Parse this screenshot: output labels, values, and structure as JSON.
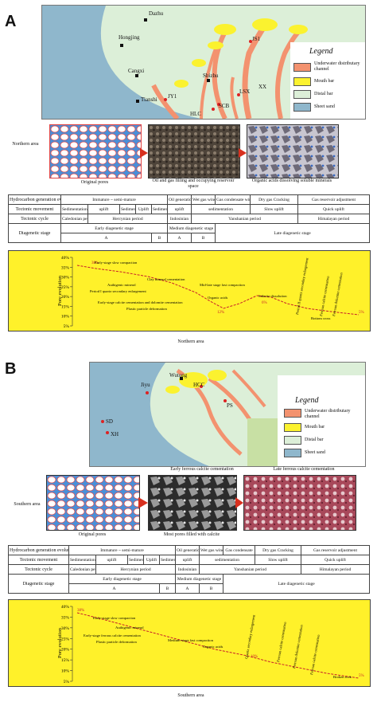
{
  "panels": [
    {
      "letter": "A",
      "map": {
        "places": [
          "Dazhu",
          "Hongjing",
          "Cangxi",
          "Shizhu",
          "JS1",
          "Tianshi",
          "LSX",
          "JY1",
          "SCB",
          "XX",
          "HLC"
        ],
        "legend_title": "Legend",
        "legend": [
          {
            "label": "Underwater distributary channel",
            "color": "#f3926f"
          },
          {
            "label": "Mouth bar",
            "color": "#fbf22f"
          },
          {
            "label": "Distal bar",
            "color": "#dcefd8"
          },
          {
            "label": "Sheet sand",
            "color": "#8fb7cc"
          }
        ]
      },
      "side_label": "Northern area",
      "micro_captions": [
        "Original pores",
        "Oil and gas filling and occupying reservoir space",
        "Organic acids dissolving soluble minerals"
      ],
      "table": {
        "row1": [
          "Hydrocarbon generation evolution",
          "Immature ~ semi-mature",
          "Oil generation window",
          "Wet gas window",
          "Gas condensate window",
          "Dry gas",
          "Cracking",
          "Gas reservoir adjustment"
        ],
        "row2": [
          "Tectonic movement",
          "Sedimentation",
          "uplift",
          "Sedimentation",
          "Uplift",
          "Sedimentation",
          "uplift",
          "sedimentation",
          "Slow uplift",
          "Quick uplift"
        ],
        "row3": [
          "Tectonic cycle",
          "Caledonian period",
          "Hercynian period",
          "Indosinian",
          "Yanshanian period",
          "Himalayan period"
        ],
        "row4": [
          "Diagenetic stage",
          "Early diagenetic stage",
          "Medium diagenetic stage",
          "Late diagenetic stage"
        ],
        "row5": [
          "A",
          "B",
          "A",
          "B"
        ]
      },
      "chart": {
        "ylabel": "Pore evolution",
        "yticks": [
          "40%",
          "35%",
          "30%",
          "25%",
          "20%",
          "15%",
          "10%",
          "5%"
        ],
        "start_value": "38%",
        "mid_value": "12%",
        "mid2_value": "6%",
        "end_value": "5%",
        "annotations": [
          "Early-stage slow compaction",
          "Clay mineral cementation",
          "Authigenic mineral",
          "Period I quartz secondary enlargement",
          "Mid-late stage fast compaction",
          "Early-stage calcite cementation and dolomite cementation",
          "Plastic particle deformation",
          "Organic acids",
          "Siderite dissolution",
          "Period II quartz secondary enlargement",
          "Ferroan calcite cementation",
          "Ferroan dolomite cementation",
          "Bottom cross"
        ]
      },
      "area_caption": "Northern area"
    },
    {
      "letter": "B",
      "map": {
        "places": [
          "Jiyu",
          "Wutong",
          "HCC",
          "PS",
          "SD",
          "XH"
        ],
        "legend_title": "Legend",
        "legend": [
          {
            "label": "Underwater distributary channel",
            "color": "#f3926f"
          },
          {
            "label": "Mouth bar",
            "color": "#fbf22f"
          },
          {
            "label": "Distal bar",
            "color": "#dcefd8"
          },
          {
            "label": "Sheet sand",
            "color": "#8fb7cc"
          }
        ]
      },
      "side_label": "Southern area",
      "micro_top_captions": [
        "Early ferrous calcite cementation",
        "Late ferrous calcite cementation"
      ],
      "micro_captions": [
        "Original pores",
        "Most pores filled with calcite"
      ],
      "table": {
        "row1": [
          "Hydrocarbon generation evolution",
          "Immature ~ semi-mature",
          "Oil generation",
          "Wet gas window",
          "Gas condensate",
          "Dry gas",
          "Cracking",
          "Gas reservoir adjustment"
        ],
        "row2": [
          "Tectonic movement",
          "Sedimentation",
          "uplift",
          "Sedimentation",
          "Uplift",
          "Sedimentation",
          "uplift",
          "sedimentation",
          "Slow uplift",
          "Quick uplift"
        ],
        "row3": [
          "Tectonic cycle",
          "Caledonian period",
          "Hercynian period",
          "Indosinian",
          "Yanshanian period",
          "Himalayan period"
        ],
        "row4": [
          "Diagenetic stage",
          "Early diagenetic stage",
          "Medium diagenetic stage",
          "Late diagenetic stage"
        ],
        "row5": [
          "A",
          "B",
          "A",
          "B"
        ]
      },
      "chart": {
        "ylabel": "Pore evolution",
        "yticks": [
          "40%",
          "35%",
          "30%",
          "25%",
          "20%",
          "15%",
          "10%",
          "5%"
        ],
        "start_value": "38%",
        "mid_value": "10%",
        "end_value": "5%",
        "annotations": [
          "Early-stage slow compaction",
          "Authigenic mineral",
          "Early-stage ferrous calcite cementation",
          "Plastic particle deformation",
          "Medium-stage fast compaction",
          "Organic acids",
          "Quartz secondary enlargement",
          "Ferroan calcite cementation",
          "Ferroan dolomite cementation",
          "Ferroan calcite cementation",
          "Broken rock"
        ]
      },
      "area_caption": "Southern area"
    }
  ]
}
